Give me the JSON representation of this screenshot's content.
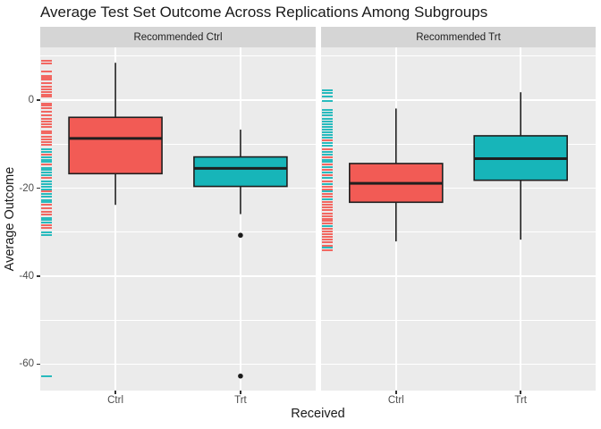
{
  "title": "Average Test Set Outcome Across Replications Among Subgroups",
  "axes": {
    "y_title": "Average Outcome",
    "x_title": "Received",
    "ylim": [
      -66,
      12
    ],
    "y_ticks": [
      {
        "label": "0",
        "value": 0
      },
      {
        "label": "-20",
        "value": -20
      },
      {
        "label": "-40",
        "value": -40
      },
      {
        "label": "-60",
        "value": -60
      }
    ],
    "y_minor": [
      10,
      -10,
      -30,
      -50
    ],
    "categories": [
      "Ctrl",
      "Trt"
    ]
  },
  "colors": {
    "ctrl_fill": "#f25b55",
    "trt_fill": "#17b5b9",
    "panel_bg": "#ebebeb",
    "strip_bg": "#d5d5d5",
    "grid": "#ffffff",
    "box_border": "#1f1f1f",
    "outlier": "#1a1a1a"
  },
  "chart_data": {
    "type": "boxplot",
    "faceted_by": "Recommended group",
    "x_categories": [
      "Ctrl",
      "Trt"
    ],
    "facets": [
      {
        "label": "Recommended Ctrl",
        "boxes": [
          {
            "category": "Ctrl",
            "color_key": "ctrl_fill",
            "whisker_low": -23.8,
            "q1": -16.7,
            "median": -8.7,
            "q3": -3.9,
            "whisker_high": 8.5,
            "outliers": []
          },
          {
            "category": "Trt",
            "color_key": "trt_fill",
            "whisker_low": -25.9,
            "q1": -19.6,
            "median": -15.5,
            "q3": -12.9,
            "whisker_high": -6.7,
            "outliers": [
              -30.7,
              -62.7
            ]
          }
        ],
        "rug": [
          [
            8.9,
            "r"
          ],
          [
            8.4,
            "r"
          ],
          [
            6.6,
            "r"
          ],
          [
            5.5,
            "r"
          ],
          [
            5.0,
            "r"
          ],
          [
            4.6,
            "r"
          ],
          [
            3.8,
            "r"
          ],
          [
            3.1,
            "r"
          ],
          [
            2.5,
            "r"
          ],
          [
            1.9,
            "r"
          ],
          [
            1.2,
            "r"
          ],
          [
            0.9,
            "r"
          ],
          [
            -0.7,
            "r"
          ],
          [
            -1.3,
            "r"
          ],
          [
            -1.9,
            "r"
          ],
          [
            -2.6,
            "r"
          ],
          [
            -3.5,
            "r"
          ],
          [
            -4.2,
            "r"
          ],
          [
            -4.8,
            "r"
          ],
          [
            -5.4,
            "r"
          ],
          [
            -6.0,
            "r"
          ],
          [
            -7.1,
            "r"
          ],
          [
            -7.6,
            "r"
          ],
          [
            -8.3,
            "r"
          ],
          [
            -9.0,
            "r"
          ],
          [
            -9.6,
            "r"
          ],
          [
            -10.2,
            "r"
          ],
          [
            -11.1,
            "t"
          ],
          [
            -11.7,
            "t"
          ],
          [
            -12.4,
            "r"
          ],
          [
            -12.9,
            "t"
          ],
          [
            -13.5,
            "t"
          ],
          [
            -14.1,
            "t"
          ],
          [
            -14.7,
            "r"
          ],
          [
            -15.4,
            "t"
          ],
          [
            -15.9,
            "t"
          ],
          [
            -16.5,
            "t"
          ],
          [
            -17.1,
            "t"
          ],
          [
            -17.7,
            "r"
          ],
          [
            -18.4,
            "t"
          ],
          [
            -19.0,
            "t"
          ],
          [
            -19.7,
            "t"
          ],
          [
            -20.2,
            "t"
          ],
          [
            -20.8,
            "r"
          ],
          [
            -21.4,
            "t"
          ],
          [
            -22.0,
            "t"
          ],
          [
            -22.7,
            "t"
          ],
          [
            -23.2,
            "t"
          ],
          [
            -23.8,
            "r"
          ],
          [
            -24.5,
            "r"
          ],
          [
            -25.3,
            "r"
          ],
          [
            -25.9,
            "r"
          ],
          [
            -26.7,
            "t"
          ],
          [
            -27.3,
            "t"
          ],
          [
            -27.9,
            "t"
          ],
          [
            -28.5,
            "r"
          ],
          [
            -29.1,
            "r"
          ],
          [
            -30.1,
            "t"
          ],
          [
            -30.7,
            "t"
          ],
          [
            -62.7,
            "t"
          ]
        ]
      },
      {
        "label": "Recommended Trt",
        "boxes": [
          {
            "category": "Ctrl",
            "color_key": "ctrl_fill",
            "whisker_low": -32.1,
            "q1": -23.2,
            "median": -18.9,
            "q3": -14.4,
            "whisker_high": -1.9,
            "outliers": []
          },
          {
            "category": "Trt",
            "color_key": "trt_fill",
            "whisker_low": -31.7,
            "q1": -18.2,
            "median": -13.3,
            "q3": -8.1,
            "whisker_high": 1.8,
            "outliers": []
          }
        ],
        "rug": [
          [
            2.3,
            "t"
          ],
          [
            1.7,
            "t"
          ],
          [
            0.9,
            "t"
          ],
          [
            -0.1,
            "t"
          ],
          [
            -2.3,
            "t"
          ],
          [
            -2.9,
            "t"
          ],
          [
            -3.5,
            "t"
          ],
          [
            -4.2,
            "t"
          ],
          [
            -4.8,
            "t"
          ],
          [
            -5.4,
            "t"
          ],
          [
            -6.0,
            "t"
          ],
          [
            -6.6,
            "t"
          ],
          [
            -7.2,
            "t"
          ],
          [
            -7.9,
            "t"
          ],
          [
            -8.6,
            "t"
          ],
          [
            -9.2,
            "r"
          ],
          [
            -9.8,
            "t"
          ],
          [
            -10.4,
            "t"
          ],
          [
            -11.1,
            "r"
          ],
          [
            -11.7,
            "t"
          ],
          [
            -12.3,
            "t"
          ],
          [
            -12.9,
            "r"
          ],
          [
            -13.5,
            "t"
          ],
          [
            -14.1,
            "t"
          ],
          [
            -14.7,
            "r"
          ],
          [
            -15.3,
            "t"
          ],
          [
            -15.9,
            "r"
          ],
          [
            -16.5,
            "t"
          ],
          [
            -17.1,
            "r"
          ],
          [
            -17.7,
            "t"
          ],
          [
            -18.4,
            "r"
          ],
          [
            -19.0,
            "t"
          ],
          [
            -19.6,
            "r"
          ],
          [
            -20.2,
            "r"
          ],
          [
            -20.8,
            "t"
          ],
          [
            -21.4,
            "r"
          ],
          [
            -22.0,
            "r"
          ],
          [
            -22.6,
            "t"
          ],
          [
            -23.2,
            "r"
          ],
          [
            -23.8,
            "r"
          ],
          [
            -24.4,
            "r"
          ],
          [
            -25.0,
            "r"
          ],
          [
            -25.7,
            "r"
          ],
          [
            -26.3,
            "r"
          ],
          [
            -26.9,
            "r"
          ],
          [
            -27.5,
            "r"
          ],
          [
            -28.1,
            "r"
          ],
          [
            -28.7,
            "t"
          ],
          [
            -29.3,
            "r"
          ],
          [
            -29.9,
            "r"
          ],
          [
            -30.5,
            "r"
          ],
          [
            -31.1,
            "r"
          ],
          [
            -31.7,
            "r"
          ],
          [
            -32.3,
            "r"
          ],
          [
            -33.0,
            "r"
          ],
          [
            -33.6,
            "t"
          ],
          [
            -34.2,
            "r"
          ]
        ]
      }
    ]
  }
}
